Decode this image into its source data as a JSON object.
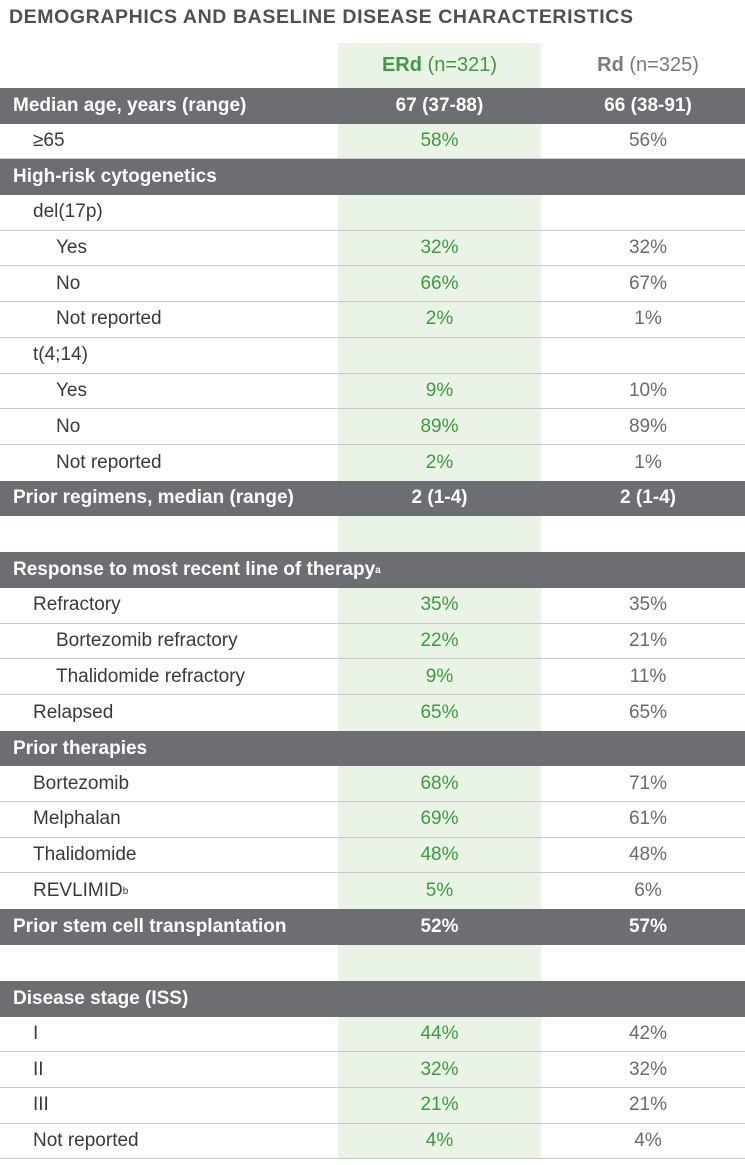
{
  "title": "DEMOGRAPHICS AND BASELINE DISEASE CHARACTERISTICS",
  "columns": {
    "erd_name": "ERd",
    "erd_n": "(n=321)",
    "rd_name": "Rd",
    "rd_n": "(n=325)"
  },
  "rows": [
    {
      "label": "Median age, years (range)",
      "erd": "67 (37-88)",
      "rd": "66 (38-91)"
    },
    {
      "label": "≥65",
      "erd": "58%",
      "rd": "56%"
    },
    {
      "label": "High-risk cytogenetics",
      "erd": "",
      "rd": ""
    },
    {
      "label": "del(17p)",
      "erd": "",
      "rd": ""
    },
    {
      "label": "Yes",
      "erd": "32%",
      "rd": "32%"
    },
    {
      "label": "No",
      "erd": "66%",
      "rd": "67%"
    },
    {
      "label": "Not reported",
      "erd": "2%",
      "rd": "1%"
    },
    {
      "label": "t(4;14)",
      "erd": "",
      "rd": ""
    },
    {
      "label": "Yes",
      "erd": "9%",
      "rd": "10%"
    },
    {
      "label": "No",
      "erd": "89%",
      "rd": "89%"
    },
    {
      "label": "Not reported",
      "erd": "2%",
      "rd": "1%"
    },
    {
      "label": "Prior regimens, median (range)",
      "erd": "2 (1-4)",
      "rd": "2 (1-4)"
    },
    {
      "label": "Response to most recent line of therapy",
      "sup": "a",
      "erd": "",
      "rd": ""
    },
    {
      "label": "Refractory",
      "erd": "35%",
      "rd": "35%"
    },
    {
      "label": "Bortezomib refractory",
      "erd": "22%",
      "rd": "21%"
    },
    {
      "label": "Thalidomide refractory",
      "erd": "9%",
      "rd": "11%"
    },
    {
      "label": "Relapsed",
      "erd": "65%",
      "rd": "65%"
    },
    {
      "label": "Prior therapies",
      "erd": "",
      "rd": ""
    },
    {
      "label": "Bortezomib",
      "erd": "68%",
      "rd": "71%"
    },
    {
      "label": "Melphalan",
      "erd": "69%",
      "rd": "61%"
    },
    {
      "label": "Thalidomide",
      "erd": "48%",
      "rd": "48%"
    },
    {
      "label": "REVLIMID",
      "sup": "b",
      "erd": "5%",
      "rd": "6%"
    },
    {
      "label": "Prior stem cell transplantation",
      "erd": "52%",
      "rd": "57%"
    },
    {
      "label": "Disease stage (ISS)",
      "erd": "",
      "rd": ""
    },
    {
      "label": "I",
      "erd": "44%",
      "rd": "42%"
    },
    {
      "label": "II",
      "erd": "32%",
      "rd": "32%"
    },
    {
      "label": "III",
      "erd": "21%",
      "rd": "21%"
    },
    {
      "label": "Not reported",
      "erd": "4%",
      "rd": "4%"
    }
  ]
}
